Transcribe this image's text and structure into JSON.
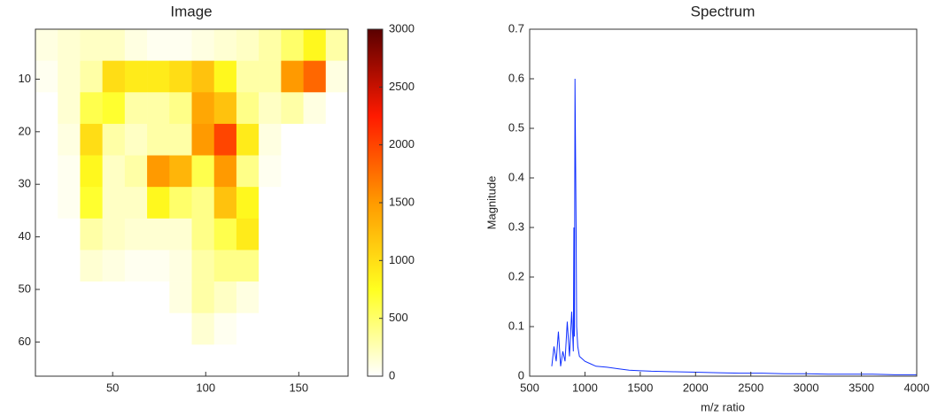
{
  "chart_data": [
    {
      "type": "heatmap",
      "title": "Image",
      "x": [
        14.5,
        26.5,
        38.5,
        50.5,
        62.5,
        74.5,
        86.5,
        98.5,
        110.5,
        122.5,
        134.5,
        146.5,
        158.5,
        170.5
      ],
      "y": [
        3.5,
        9.5,
        15.5,
        21.5,
        27.5,
        33.5,
        39.5,
        45.5,
        51.5,
        57.5,
        63.5
      ],
      "values": [
        [
          100,
          150,
          200,
          200,
          100,
          50,
          50,
          100,
          150,
          200,
          300,
          500,
          800,
          300
        ],
        [
          50,
          150,
          300,
          1000,
          900,
          900,
          1000,
          1200,
          800,
          300,
          300,
          1500,
          1800,
          100
        ],
        [
          0,
          150,
          600,
          700,
          300,
          300,
          400,
          1400,
          1200,
          400,
          200,
          300,
          100,
          0
        ],
        [
          0,
          100,
          1000,
          300,
          200,
          300,
          300,
          1500,
          2000,
          900,
          100,
          0,
          0,
          0
        ],
        [
          0,
          50,
          800,
          200,
          300,
          1500,
          1300,
          600,
          1500,
          400,
          50,
          0,
          0,
          0
        ],
        [
          0,
          50,
          700,
          200,
          200,
          800,
          500,
          400,
          1200,
          800,
          0,
          0,
          0,
          0
        ],
        [
          0,
          0,
          300,
          200,
          150,
          150,
          150,
          400,
          600,
          900,
          0,
          0,
          0,
          0
        ],
        [
          0,
          0,
          150,
          100,
          50,
          50,
          100,
          300,
          400,
          400,
          0,
          0,
          0,
          0
        ],
        [
          0,
          0,
          0,
          0,
          0,
          0,
          100,
          300,
          200,
          100,
          0,
          0,
          0,
          0
        ],
        [
          0,
          0,
          0,
          0,
          0,
          0,
          0,
          150,
          50,
          0,
          0,
          0,
          0,
          0
        ],
        [
          0,
          0,
          0,
          0,
          0,
          0,
          0,
          0,
          0,
          0,
          0,
          0,
          0,
          0
        ]
      ],
      "xlim": [
        8.5,
        176.5
      ],
      "ylim": [
        0.5,
        66.5
      ],
      "y_reversed": true,
      "xticks": [
        50,
        100,
        150
      ],
      "yticks": [
        10,
        20,
        30,
        40,
        50,
        60
      ],
      "clim": [
        0,
        3000
      ],
      "cticks": [
        0,
        500,
        1000,
        1500,
        2000,
        2500,
        3000
      ],
      "colormap": [
        "#ffffff",
        "#ffff20",
        "#ff9a00",
        "#ff1a00",
        "#5a0000"
      ]
    },
    {
      "type": "line",
      "title": "Spectrum",
      "xlabel": "m/z ratio",
      "ylabel": "Magnitude",
      "color": "#1030ff",
      "x": [
        700,
        720,
        740,
        760,
        780,
        800,
        820,
        840,
        860,
        880,
        895,
        900,
        905,
        910,
        915,
        920,
        925,
        935,
        950,
        975,
        1000,
        1050,
        1100,
        1200,
        1300,
        1400,
        1500,
        1600,
        1800,
        2000,
        2200,
        2400,
        2600,
        2800,
        3000,
        3200,
        3400,
        3600,
        3800,
        4000
      ],
      "values": [
        0.02,
        0.06,
        0.03,
        0.09,
        0.02,
        0.05,
        0.03,
        0.11,
        0.04,
        0.13,
        0.05,
        0.3,
        0.08,
        0.6,
        0.45,
        0.3,
        0.1,
        0.06,
        0.04,
        0.035,
        0.03,
        0.025,
        0.02,
        0.018,
        0.015,
        0.012,
        0.011,
        0.01,
        0.009,
        0.008,
        0.007,
        0.006,
        0.006,
        0.005,
        0.005,
        0.004,
        0.004,
        0.004,
        0.003,
        0.003
      ],
      "xlim": [
        500,
        4000
      ],
      "ylim": [
        0,
        0.7
      ],
      "xticks": [
        500,
        1000,
        1500,
        2000,
        2500,
        3000,
        3500,
        4000
      ],
      "yticks": [
        0,
        0.1,
        0.2,
        0.3,
        0.4,
        0.5,
        0.6,
        0.7
      ]
    }
  ]
}
